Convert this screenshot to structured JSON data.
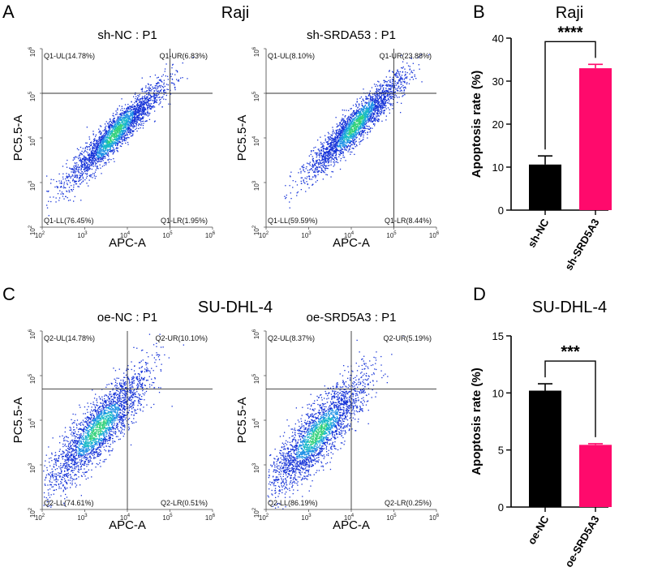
{
  "panels": {
    "A": {
      "letter": "A",
      "title": "Raji"
    },
    "B": {
      "letter": "B",
      "title": "Raji"
    },
    "C": {
      "letter": "C",
      "title": "SU-DHL-4"
    },
    "D": {
      "letter": "D",
      "title": "SU-DHL-4"
    }
  },
  "flow_axis": {
    "xlabel": "APC-A",
    "ylabel": "PC5.5-A",
    "tick_base": "10",
    "tick_exponents": [
      "2",
      "3",
      "4",
      "5",
      "6"
    ]
  },
  "chart_data": [
    {
      "type": "scatter",
      "id": "raji-sh-nc",
      "title": "sh-NC : P1",
      "xlabel": "APC-A",
      "ylabel": "PC5.5-A",
      "scale": "log10",
      "xlim": [
        100,
        1000000
      ],
      "ylim": [
        100,
        1000000
      ],
      "gate": {
        "x": 100000,
        "y": 100000
      },
      "quadrants": {
        "UL": "Q1-UL(14.78%)",
        "UR": "Q1-UR(6.83%)",
        "LL": "Q1-LL(76.45%)",
        "LR": "Q1-LR(1.95%)"
      },
      "cloud": {
        "shape": "broad",
        "center_x_log": 3.7,
        "center_y_log": 4.1,
        "spread_log": 0.55
      }
    },
    {
      "type": "scatter",
      "id": "raji-sh-srd5a3",
      "title": "sh-SRDA53 : P1",
      "xlabel": "APC-A",
      "ylabel": "PC5.5-A",
      "scale": "log10",
      "xlim": [
        100,
        1000000
      ],
      "ylim": [
        100,
        1000000
      ],
      "gate": {
        "x": 100000,
        "y": 100000
      },
      "quadrants": {
        "UL": "Q1-UL(8.10%)",
        "UR": "Q1-UR(23.88%)",
        "LL": "Q1-LL(59.59%)",
        "LR": "Q1-LR(8.44%)"
      },
      "cloud": {
        "shape": "broad",
        "center_x_log": 4.1,
        "center_y_log": 4.3,
        "spread_log": 0.55
      }
    },
    {
      "type": "scatter",
      "id": "sudhl4-oe-nc",
      "title": "oe-NC : P1",
      "xlabel": "APC-A",
      "ylabel": "PC5.5-A",
      "scale": "log10",
      "xlim": [
        100,
        1000000
      ],
      "ylim": [
        100,
        1000000
      ],
      "gate": {
        "x": 10000,
        "y": 50000
      },
      "quadrants": {
        "UL": "Q2-UL(14.78%)",
        "UR": "Q2-UR(10.10%)",
        "LL": "Q2-LL(74.61%)",
        "LR": "Q2-LR(0.51%)"
      },
      "cloud": {
        "shape": "diagonal",
        "center_x_log": 3.3,
        "center_y_log": 3.8,
        "spread_log": 0.35
      }
    },
    {
      "type": "scatter",
      "id": "sudhl4-oe-srd5a3",
      "title": "oe-SRD5A3 : P1",
      "xlabel": "APC-A",
      "ylabel": "PC5.5-A",
      "scale": "log10",
      "xlim": [
        100,
        1000000
      ],
      "ylim": [
        100,
        1000000
      ],
      "gate": {
        "x": 10000,
        "y": 50000
      },
      "quadrants": {
        "UL": "Q2-UL(8.37%)",
        "UR": "Q2-UR(5.19%)",
        "LL": "Q2-LL(86.19%)",
        "LR": "Q2-LR(0.25%)"
      },
      "cloud": {
        "shape": "diagonal",
        "center_x_log": 3.2,
        "center_y_log": 3.7,
        "spread_log": 0.35
      }
    },
    {
      "type": "bar",
      "id": "raji-apoptosis",
      "title": "Raji",
      "ylabel": "Apoptosis rate (%)",
      "ylim": [
        0,
        40
      ],
      "yticks": [
        0,
        10,
        20,
        30,
        40
      ],
      "categories": [
        "sh-NC",
        "sh-SRD5A3"
      ],
      "values": [
        10.6,
        33.0
      ],
      "errors": [
        2.0,
        0.9
      ],
      "colors": [
        "#000000",
        "#ff0a6c"
      ],
      "significance": "****"
    },
    {
      "type": "bar",
      "id": "sudhl4-apoptosis",
      "title": "SU-DHL-4",
      "ylabel": "Apoptosis rate (%)",
      "ylim": [
        0,
        15
      ],
      "yticks": [
        0,
        5,
        10,
        15
      ],
      "categories": [
        "oe-NC",
        "oe-SRD5A3"
      ],
      "values": [
        10.2,
        5.45
      ],
      "errors": [
        0.6,
        0.1
      ],
      "colors": [
        "#000000",
        "#ff0a6c"
      ],
      "significance": "***"
    }
  ]
}
